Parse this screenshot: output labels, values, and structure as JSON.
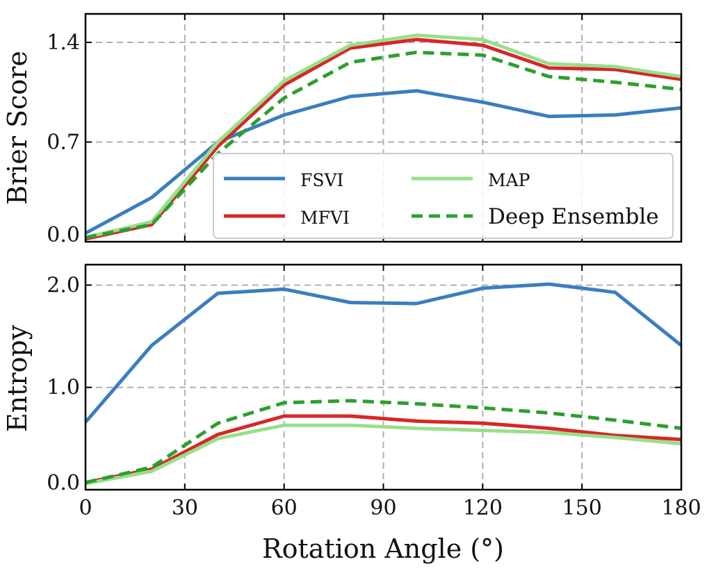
{
  "chart_data": [
    {
      "type": "line",
      "ylabel": "Brier Score",
      "xlabel": "",
      "xlim": [
        0,
        180
      ],
      "ylim": [
        0.0,
        1.6
      ],
      "x_ticks": [
        0,
        30,
        60,
        90,
        120,
        150,
        180
      ],
      "y_ticks": [
        0.0,
        0.7,
        1.4
      ],
      "y_tick_labels": [
        "0.0",
        "0.7",
        "1.4"
      ],
      "grid": true,
      "legend_position": "center-right",
      "legend_columns": 2,
      "x": [
        0,
        20,
        40,
        60,
        80,
        100,
        120,
        140,
        160,
        180
      ],
      "series": [
        {
          "name": "FSVI",
          "color": "#3a7ebf",
          "dash": "solid",
          "values": [
            0.06,
            0.31,
            0.7,
            0.89,
            1.02,
            1.06,
            0.98,
            0.88,
            0.89,
            0.94
          ]
        },
        {
          "name": "MFVI",
          "color": "#d62728",
          "dash": "solid",
          "values": [
            0.02,
            0.12,
            0.67,
            1.1,
            1.36,
            1.42,
            1.38,
            1.22,
            1.21,
            1.14
          ]
        },
        {
          "name": "MAP",
          "color": "#98df8a",
          "dash": "solid",
          "values": [
            0.03,
            0.14,
            0.7,
            1.13,
            1.38,
            1.45,
            1.42,
            1.25,
            1.23,
            1.16
          ]
        },
        {
          "name": "Deep Ensemble",
          "color": "#2ca02c",
          "dash": "dashed",
          "values": [
            0.03,
            0.12,
            0.62,
            1.01,
            1.26,
            1.33,
            1.31,
            1.16,
            1.12,
            1.07
          ]
        }
      ]
    },
    {
      "type": "line",
      "ylabel": "Entropy",
      "xlabel": "Rotation Angle (°)",
      "xlim": [
        0,
        180
      ],
      "ylim": [
        0.0,
        2.2
      ],
      "x_ticks": [
        0,
        30,
        60,
        90,
        120,
        150,
        180
      ],
      "x_tick_labels": [
        "0",
        "30",
        "60",
        "90",
        "120",
        "150",
        "180"
      ],
      "y_ticks": [
        0.0,
        1.0,
        2.0
      ],
      "y_tick_labels": [
        "0.0",
        "1.0",
        "2.0"
      ],
      "grid": true,
      "x": [
        0,
        20,
        40,
        60,
        80,
        100,
        120,
        140,
        160,
        180
      ],
      "series": [
        {
          "name": "FSVI",
          "color": "#3a7ebf",
          "dash": "solid",
          "values": [
            0.66,
            1.41,
            1.92,
            1.96,
            1.83,
            1.82,
            1.97,
            2.01,
            1.93,
            1.41
          ]
        },
        {
          "name": "MFVI",
          "color": "#d62728",
          "dash": "solid",
          "values": [
            0.07,
            0.2,
            0.54,
            0.72,
            0.72,
            0.67,
            0.65,
            0.6,
            0.53,
            0.49
          ]
        },
        {
          "name": "MAP",
          "color": "#98df8a",
          "dash": "solid",
          "values": [
            0.06,
            0.18,
            0.5,
            0.63,
            0.63,
            0.6,
            0.58,
            0.56,
            0.51,
            0.45
          ]
        },
        {
          "name": "Deep Ensemble",
          "color": "#2ca02c",
          "dash": "dashed",
          "values": [
            0.07,
            0.22,
            0.65,
            0.85,
            0.87,
            0.84,
            0.8,
            0.75,
            0.68,
            0.6
          ]
        }
      ]
    }
  ]
}
